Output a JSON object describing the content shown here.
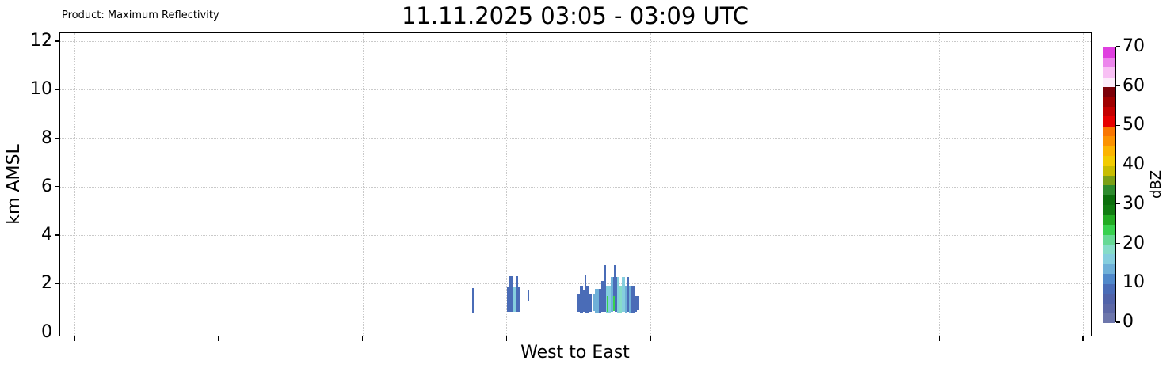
{
  "figure": {
    "product_label": "Product: Maximum Reflectivity",
    "title": "11.11.2025 03:05 - 03:09 UTC",
    "xlabel": "West to East",
    "ylabel": "km AMSL",
    "colorbar_label": "dBZ"
  },
  "chart_data": {
    "type": "bar",
    "title": "11.11.2025 03:05 - 03:09 UTC",
    "subtitle": "Product: Maximum Reflectivity",
    "xlabel": "West to East",
    "ylabel": "km AMSL",
    "ylim": [
      0,
      12
    ],
    "yticks": [
      0,
      2,
      4,
      6,
      8,
      10,
      12
    ],
    "xticks": {
      "count": 8,
      "labels_visible": false
    },
    "grid": {
      "visible": true,
      "style": "dotted"
    },
    "legend_position": "none",
    "colorbar": {
      "label": "dBZ",
      "min": 0,
      "max": 70,
      "step": 2.5,
      "ticks": [
        0,
        10,
        20,
        30,
        40,
        50,
        60,
        70
      ],
      "colors": [
        "#6d76ab",
        "#5d68a6",
        "#5163a9",
        "#4a6cb7",
        "#5088ca",
        "#6fb0d8",
        "#85cede",
        "#86dcc8",
        "#67d995",
        "#38d14e",
        "#22ab22",
        "#117c11",
        "#0c6e0c",
        "#2e8b2e",
        "#7ba016",
        "#c9bd00",
        "#f2cb00",
        "#fcb400",
        "#fc9200",
        "#f97602",
        "#e60000",
        "#c40000",
        "#a00000",
        "#7c0008",
        "#fcecfa",
        "#f8c0f4",
        "#ec86ec",
        "#df3fdf"
      ]
    },
    "bars_note": "x = fraction of west-east axis, w = pixel width, base/top in km AMSL, dbz = reflectivity value",
    "bars": [
      {
        "x": 0.3991,
        "w": 2,
        "base": 0.8,
        "top": 1.85,
        "dbz": 8
      },
      {
        "x": 0.4328,
        "w": 3,
        "base": 0.87,
        "top": 1.87,
        "dbz": 8
      },
      {
        "x": 0.4351,
        "w": 4,
        "base": 0.87,
        "top": 2.33,
        "dbz": 8
      },
      {
        "x": 0.4382,
        "w": 4,
        "base": 0.87,
        "top": 1.87,
        "dbz": 16
      },
      {
        "x": 0.4413,
        "w": 3,
        "base": 0.87,
        "top": 2.33,
        "dbz": 8
      },
      {
        "x": 0.4436,
        "w": 2,
        "base": 0.87,
        "top": 1.87,
        "dbz": 8
      },
      {
        "x": 0.4528,
        "w": 2,
        "base": 1.33,
        "top": 1.78,
        "dbz": 8
      },
      {
        "x": 0.5012,
        "w": 3,
        "base": 0.87,
        "top": 1.57,
        "dbz": 8
      },
      {
        "x": 0.5035,
        "w": 4,
        "base": 0.79,
        "top": 1.94,
        "dbz": 8
      },
      {
        "x": 0.5065,
        "w": 2,
        "base": 0.87,
        "top": 1.78,
        "dbz": 8
      },
      {
        "x": 0.508,
        "w": 2,
        "base": 0.79,
        "top": 2.38,
        "dbz": 8
      },
      {
        "x": 0.5096,
        "w": 4,
        "base": 0.79,
        "top": 1.94,
        "dbz": 8
      },
      {
        "x": 0.5126,
        "w": 3,
        "base": 0.87,
        "top": 1.57,
        "dbz": 8
      },
      {
        "x": 0.5157,
        "w": 3,
        "base": 0.9,
        "top": 1.6,
        "dbz": 13
      },
      {
        "x": 0.518,
        "w": 5,
        "base": 0.79,
        "top": 1.81,
        "dbz": 13
      },
      {
        "x": 0.5218,
        "w": 3,
        "base": 0.79,
        "top": 1.81,
        "dbz": 8
      },
      {
        "x": 0.5241,
        "w": 4,
        "base": 0.87,
        "top": 2.13,
        "dbz": 8
      },
      {
        "x": 0.5272,
        "w": 2,
        "base": 0.87,
        "top": 2.8,
        "dbz": 8
      },
      {
        "x": 0.5287,
        "w": 3,
        "base": 0.79,
        "top": 1.94,
        "dbz": 16
      },
      {
        "x": 0.5295,
        "w": 2,
        "base": 0.87,
        "top": 1.52,
        "dbz": 24
      },
      {
        "x": 0.531,
        "w": 3,
        "base": 0.79,
        "top": 1.94,
        "dbz": 16
      },
      {
        "x": 0.5333,
        "w": 3,
        "base": 0.87,
        "top": 2.3,
        "dbz": 13
      },
      {
        "x": 0.5357,
        "w": 2,
        "base": 1.52,
        "top": 2.3,
        "dbz": 8
      },
      {
        "x": 0.5357,
        "w": 2,
        "base": 0.89,
        "top": 1.52,
        "dbz": 24
      },
      {
        "x": 0.5364,
        "w": 2,
        "base": 2.3,
        "top": 2.8,
        "dbz": 8
      },
      {
        "x": 0.5372,
        "w": 3,
        "base": 0.87,
        "top": 2.3,
        "dbz": 8
      },
      {
        "x": 0.5395,
        "w": 3,
        "base": 0.79,
        "top": 2.3,
        "dbz": 16
      },
      {
        "x": 0.5418,
        "w": 3,
        "base": 0.79,
        "top": 1.94,
        "dbz": 18.5
      },
      {
        "x": 0.5441,
        "w": 4,
        "base": 0.87,
        "top": 2.3,
        "dbz": 16
      },
      {
        "x": 0.5472,
        "w": 3,
        "base": 0.79,
        "top": 1.94,
        "dbz": 13
      },
      {
        "x": 0.5495,
        "w": 2,
        "base": 0.87,
        "top": 2.3,
        "dbz": 8
      },
      {
        "x": 0.551,
        "w": 3,
        "base": 0.79,
        "top": 1.94,
        "dbz": 13
      },
      {
        "x": 0.5533,
        "w": 4,
        "base": 0.79,
        "top": 1.94,
        "dbz": 8
      },
      {
        "x": 0.5564,
        "w": 3,
        "base": 0.87,
        "top": 1.52,
        "dbz": 8
      },
      {
        "x": 0.5587,
        "w": 3,
        "base": 0.94,
        "top": 1.52,
        "dbz": 8
      }
    ]
  }
}
